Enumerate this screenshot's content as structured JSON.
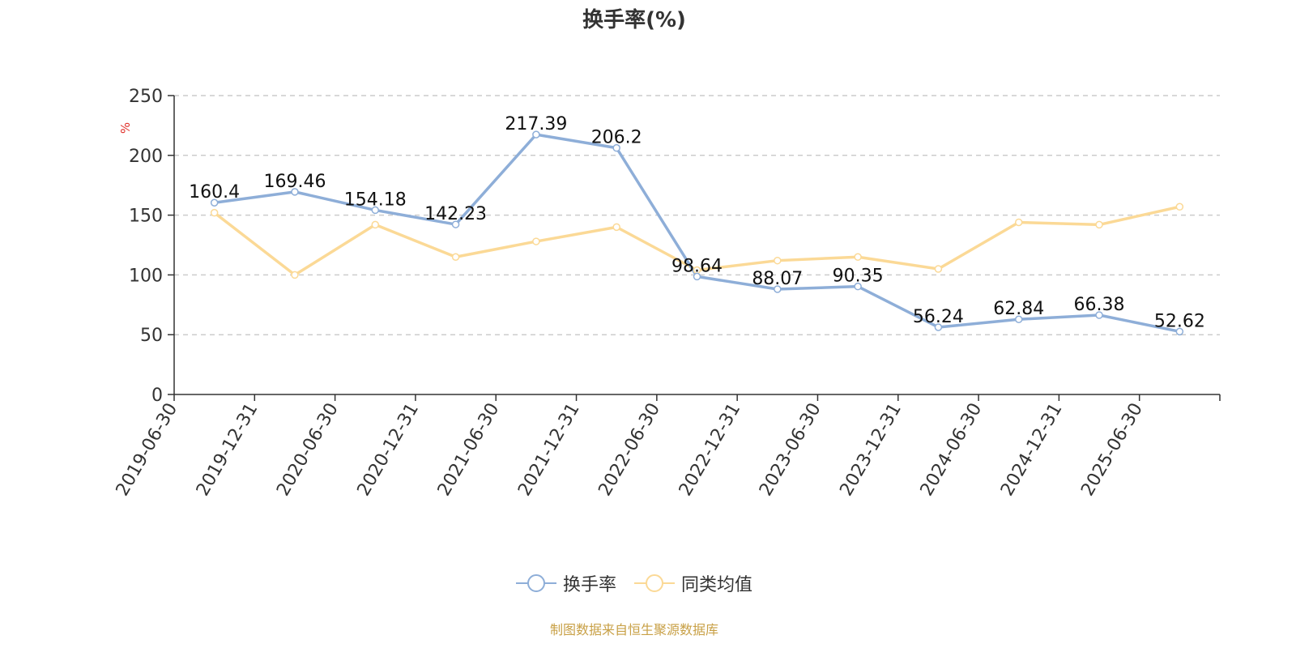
{
  "colors": {
    "series1": "#8eaed8",
    "series2": "#fbd996",
    "axis": "#333333",
    "grid": "#cccccc",
    "unit": "#e0302a",
    "source": "#c8a046"
  },
  "chart_data": {
    "type": "line",
    "title": "换手率(%)",
    "ylabel": "%",
    "ylim": [
      0,
      250
    ],
    "yticks": [
      0,
      50,
      100,
      150,
      200,
      250
    ],
    "grid": "horizontal-dashed",
    "legend_position": "bottom-center",
    "categories": [
      "2019-06-30",
      "2019-12-31",
      "2020-06-30",
      "2020-12-31",
      "2021-06-30",
      "2021-12-31",
      "2022-06-30",
      "2022-12-31",
      "2023-06-30",
      "2023-12-31",
      "2024-06-30",
      "2024-12-31",
      "2025-06-30"
    ],
    "series": [
      {
        "name": "换手率",
        "values": [
          160.4,
          169.46,
          154.18,
          142.23,
          217.39,
          206.2,
          98.64,
          88.07,
          90.35,
          56.24,
          62.84,
          66.38,
          52.62
        ],
        "labels": [
          "160.4",
          "169.46",
          "154.18",
          "142.23",
          "217.39",
          "206.2",
          "98.64",
          "88.07",
          "90.35",
          "56.24",
          "62.84",
          "66.38",
          "52.62"
        ]
      },
      {
        "name": "同类均值",
        "values": [
          152,
          100,
          142,
          115,
          128,
          140,
          104,
          112,
          115,
          105,
          144,
          142,
          157
        ]
      }
    ]
  },
  "source_note": "制图数据来自恒生聚源数据库"
}
